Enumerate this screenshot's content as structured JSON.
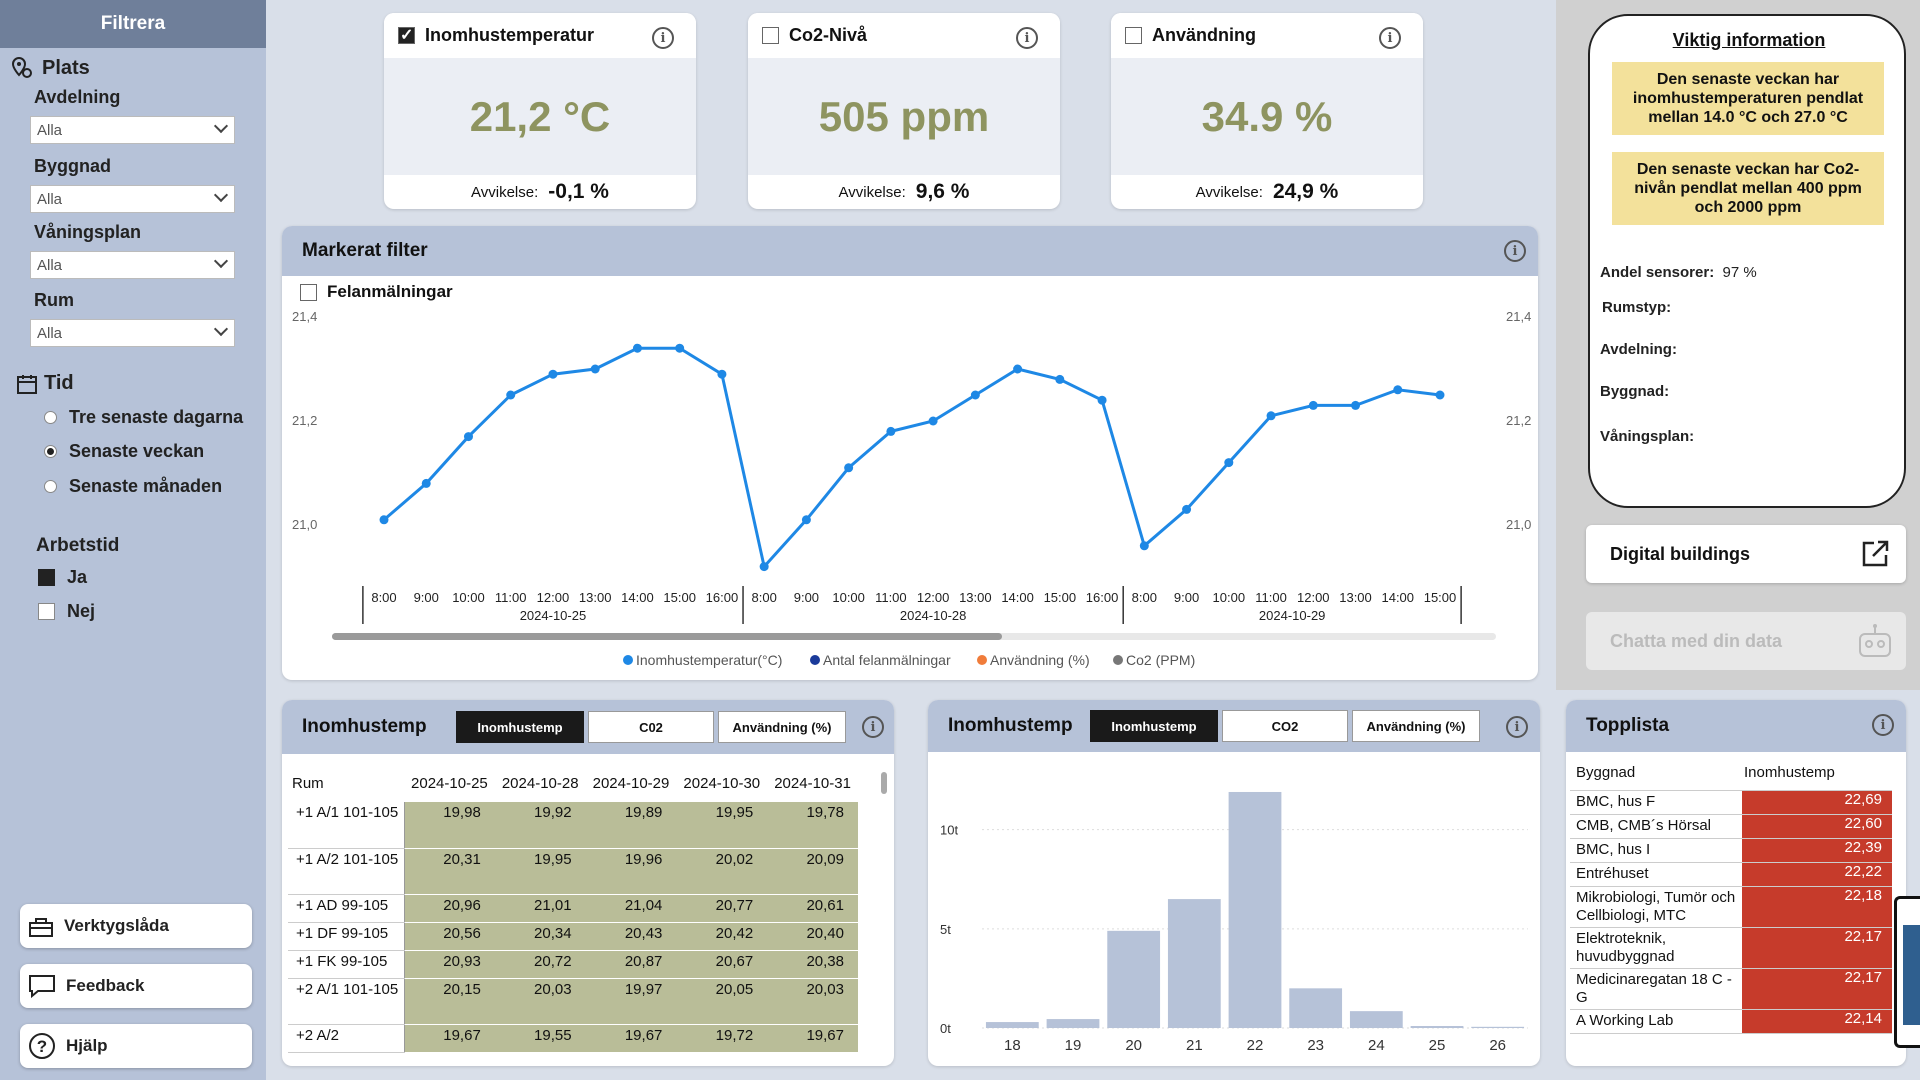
{
  "sidebar": {
    "header": "Filtrera",
    "plats": "Plats",
    "filters": [
      {
        "label": "Avdelning",
        "value": "Alla"
      },
      {
        "label": "Byggnad",
        "value": "Alla"
      },
      {
        "label": "Våningsplan",
        "value": "Alla"
      },
      {
        "label": "Rum",
        "value": "Alla"
      }
    ],
    "tid": "Tid",
    "time_options": [
      {
        "label": "Tre senaste dagarna",
        "selected": false
      },
      {
        "label": "Senaste veckan",
        "selected": true
      },
      {
        "label": "Senaste månaden",
        "selected": false
      }
    ],
    "arbetstid": "Arbetstid",
    "arbetstid_options": [
      {
        "label": "Ja",
        "checked": true
      },
      {
        "label": "Nej",
        "checked": false
      }
    ],
    "buttons": [
      "Verktygslåda",
      "Feedback",
      "Hjälp"
    ]
  },
  "kpis": [
    {
      "title": "Inomhustemperatur",
      "checked": true,
      "value": "21,2 °C",
      "dev_label": "Avvikelse:",
      "dev_value": "-0,1 %"
    },
    {
      "title": "Co2-Nivå",
      "checked": false,
      "value": "505 ppm",
      "dev_label": "Avvikelse:",
      "dev_value": "9,6 %"
    },
    {
      "title": "Användning",
      "checked": false,
      "value": "34.9 %",
      "dev_label": "Avvikelse:",
      "dev_value": "24,9 %"
    }
  ],
  "info_panel": {
    "title": "Viktig information",
    "notes": [
      "Den senaste veckan har inomhustemperaturen pendlat mellan 14.0 °C och 27.0 °C",
      "Den senaste veckan har Co2-nivån pendlat mellan 400 ppm och 2000 ppm"
    ],
    "andel_label": "Andel sensorer:",
    "andel_value": "97 %",
    "fields": [
      "Rumstyp:",
      "Avdelning:",
      "Byggnad:",
      "Våningsplan:"
    ]
  },
  "links": {
    "digital": "Digital buildings",
    "chat": "Chatta med din data"
  },
  "line_panel": {
    "title": "Markerat filter",
    "felan": "Felanmälningar"
  },
  "chart_data": [
    {
      "type": "line",
      "title": "Markerat filter",
      "ylim": [
        21.0,
        21.4
      ],
      "y_ticks": [
        "21,4",
        "21,2",
        "21,0"
      ],
      "x": [
        "8:00",
        "9:00",
        "10:00",
        "11:00",
        "12:00",
        "13:00",
        "14:00",
        "15:00",
        "16:00",
        "8:00",
        "9:00",
        "10:00",
        "11:00",
        "12:00",
        "13:00",
        "14:00",
        "15:00",
        "16:00",
        "8:00",
        "9:00",
        "10:00",
        "11:00",
        "12:00",
        "13:00",
        "14:00",
        "15:00"
      ],
      "dates": [
        {
          "label": "2024-10-25",
          "start": 0,
          "end": 8
        },
        {
          "label": "2024-10-28",
          "start": 9,
          "end": 17
        },
        {
          "label": "2024-10-29",
          "start": 18,
          "end": 25
        }
      ],
      "series": [
        {
          "name": "Inomhustemperatur(°C)",
          "color": "#1e88e5",
          "values": [
            21.01,
            21.08,
            21.17,
            21.25,
            21.29,
            21.3,
            21.34,
            21.34,
            21.29,
            20.92,
            21.01,
            21.11,
            21.18,
            21.2,
            21.25,
            21.3,
            21.28,
            21.24,
            20.96,
            21.03,
            21.12,
            21.21,
            21.23,
            21.23,
            21.26,
            21.25
          ]
        }
      ],
      "legend": [
        {
          "name": "Inomhustemperatur(°C)",
          "color": "#1e88e5"
        },
        {
          "name": "Antal felanmälningar",
          "color": "#1a3a9a"
        },
        {
          "name": "Användning (%)",
          "color": "#f07c3a"
        },
        {
          "name": "Co2 (PPM)",
          "color": "#777777"
        }
      ]
    },
    {
      "type": "bar",
      "title": "Inomhustemp",
      "categories": [
        "18",
        "19",
        "20",
        "21",
        "22",
        "23",
        "24",
        "25",
        "26"
      ],
      "values": [
        300,
        450,
        4900,
        6500,
        11900,
        2000,
        850,
        100,
        60
      ],
      "ylim": [
        0,
        12000
      ],
      "y_ticks": [
        {
          "label": "0t",
          "v": 0
        },
        {
          "label": "5t",
          "v": 5000
        },
        {
          "label": "10t",
          "v": 10000
        }
      ]
    }
  ],
  "table_panel": {
    "title": "Inomhustemp",
    "tabs": [
      "Inomhustemp",
      "C02",
      "Användning (%)"
    ],
    "columns": [
      "Rum",
      "2024-10-25",
      "2024-10-28",
      "2024-10-29",
      "2024-10-30",
      "2024-10-31"
    ],
    "rows": [
      [
        "+1 A/1 101-105",
        "19,98",
        "19,92",
        "19,89",
        "19,95",
        "19,78"
      ],
      [
        "+1 A/2 101-105",
        "20,31",
        "19,95",
        "19,96",
        "20,02",
        "20,09"
      ],
      [
        "+1 AD 99-105",
        "20,96",
        "21,01",
        "21,04",
        "20,77",
        "20,61"
      ],
      [
        "+1 DF 99-105",
        "20,56",
        "20,34",
        "20,43",
        "20,42",
        "20,40"
      ],
      [
        "+1 FK 99-105",
        "20,93",
        "20,72",
        "20,87",
        "20,67",
        "20,38"
      ],
      [
        "+2 A/1 101-105",
        "20,15",
        "20,03",
        "19,97",
        "20,05",
        "20,03"
      ],
      [
        "+2 A/2",
        "19,67",
        "19,55",
        "19,67",
        "19,72",
        "19,67"
      ]
    ]
  },
  "hist_panel": {
    "title": "Inomhustemp",
    "tabs": [
      "Inomhustemp",
      "CO2",
      "Användning (%)"
    ]
  },
  "toplist": {
    "title": "Topplista",
    "col1": "Byggnad",
    "col2": "Inomhustemp",
    "rows": [
      [
        "BMC, hus F",
        "22,69"
      ],
      [
        "CMB, CMB´s Hörsal",
        "22,60"
      ],
      [
        "BMC, hus I",
        "22,39"
      ],
      [
        "Entréhuset",
        "22,22"
      ],
      [
        "Mikrobiologi, Tumör och Cellbiologi, MTC",
        "22,18"
      ],
      [
        "Elektroteknik, huvudbyggnad",
        "22,17"
      ],
      [
        "Medicinaregatan 18 C - G",
        "22,17"
      ],
      [
        "A Working Lab",
        "22,14"
      ]
    ]
  }
}
